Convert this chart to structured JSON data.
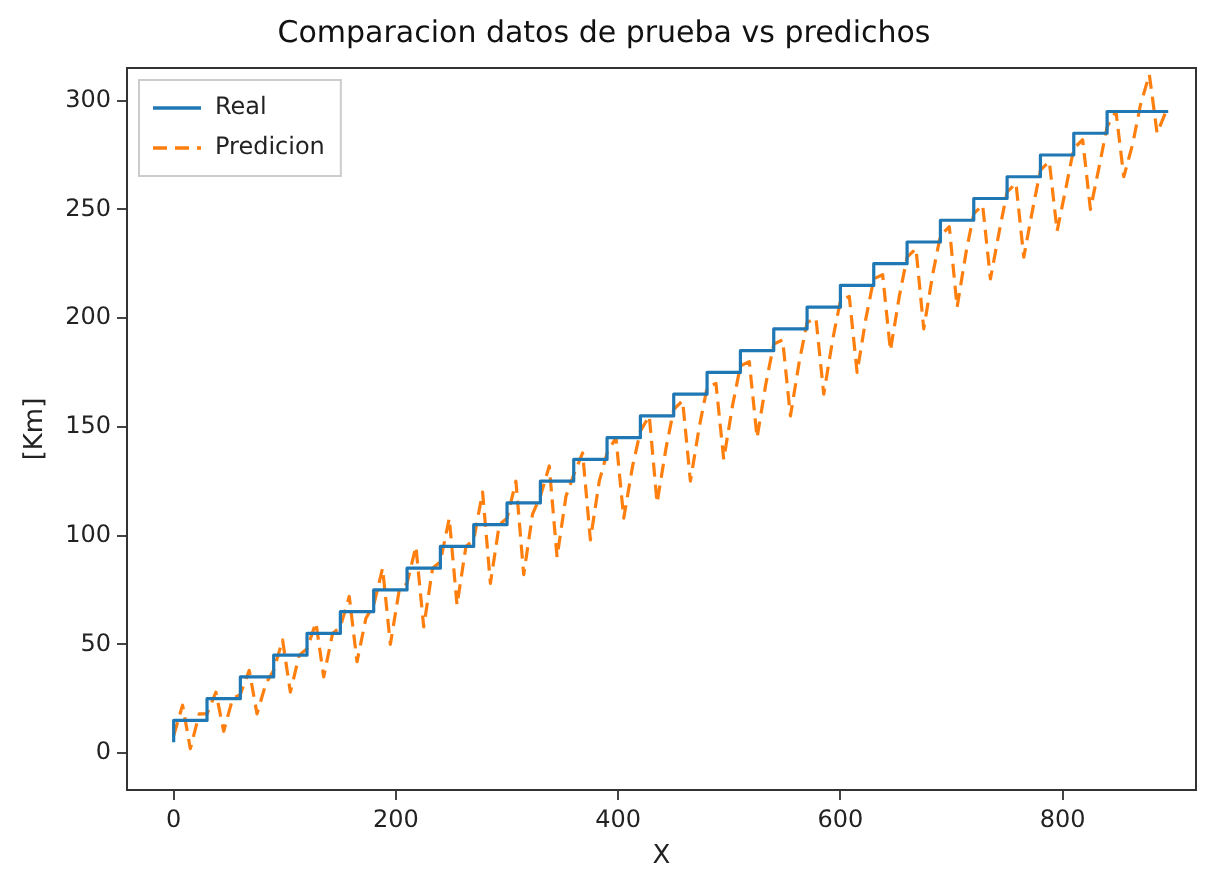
{
  "chart_data": {
    "type": "line",
    "title": "Comparacion datos de prueba vs predichos",
    "xlabel": "X",
    "ylabel": "[Km]",
    "xlim": [
      -42,
      920
    ],
    "ylim": [
      -17,
      315
    ],
    "xticks": [
      0,
      200,
      400,
      600,
      800
    ],
    "yticks": [
      0,
      50,
      100,
      150,
      200,
      250,
      300
    ],
    "grid": false,
    "legend": "top left",
    "series": [
      {
        "name": "Real",
        "type": "step",
        "color": "#1f77b4",
        "line_style": "solid",
        "x": [
          0,
          30,
          60,
          90,
          120,
          150,
          180,
          210,
          240,
          270,
          300,
          330,
          360,
          390,
          420,
          450,
          480,
          510,
          540,
          570,
          600,
          630,
          660,
          690,
          720,
          750,
          780,
          810,
          840,
          870,
          895
        ],
        "values": [
          5,
          15,
          25,
          35,
          45,
          55,
          65,
          75,
          85,
          95,
          105,
          115,
          125,
          135,
          145,
          155,
          165,
          175,
          185,
          195,
          205,
          215,
          225,
          235,
          245,
          255,
          265,
          275,
          285,
          295,
          295
        ]
      },
      {
        "name": "Predicion",
        "type": "line",
        "color": "#ff7f0e",
        "line_style": "dashed",
        "x": [
          0,
          8,
          15,
          23,
          30,
          38,
          45,
          53,
          60,
          68,
          75,
          83,
          90,
          98,
          105,
          113,
          120,
          128,
          135,
          143,
          150,
          158,
          165,
          173,
          180,
          188,
          195,
          203,
          210,
          218,
          225,
          233,
          240,
          248,
          255,
          263,
          270,
          278,
          285,
          293,
          300,
          308,
          315,
          323,
          330,
          338,
          345,
          353,
          360,
          368,
          375,
          383,
          390,
          398,
          405,
          413,
          420,
          428,
          435,
          443,
          450,
          458,
          465,
          473,
          480,
          488,
          495,
          503,
          510,
          518,
          525,
          533,
          540,
          548,
          555,
          563,
          570,
          578,
          585,
          593,
          600,
          608,
          615,
          623,
          630,
          638,
          645,
          653,
          660,
          668,
          675,
          683,
          690,
          698,
          705,
          713,
          720,
          728,
          735,
          743,
          750,
          758,
          765,
          773,
          780,
          788,
          795,
          803,
          810,
          818,
          825,
          833,
          840,
          848,
          855,
          863,
          870,
          878,
          885,
          893
        ],
        "values": [
          8,
          22,
          2,
          18,
          18,
          28,
          10,
          25,
          27,
          38,
          18,
          32,
          38,
          52,
          28,
          45,
          48,
          60,
          35,
          55,
          58,
          72,
          42,
          62,
          68,
          85,
          50,
          75,
          78,
          95,
          58,
          85,
          88,
          108,
          68,
          95,
          98,
          120,
          78,
          105,
          108,
          125,
          82,
          110,
          118,
          132,
          90,
          118,
          128,
          138,
          98,
          125,
          138,
          145,
          108,
          132,
          148,
          155,
          115,
          140,
          158,
          162,
          125,
          150,
          168,
          170,
          135,
          160,
          178,
          180,
          145,
          170,
          188,
          190,
          155,
          180,
          198,
          200,
          165,
          190,
          208,
          210,
          175,
          200,
          218,
          220,
          185,
          210,
          228,
          232,
          195,
          220,
          238,
          242,
          205,
          230,
          248,
          252,
          218,
          240,
          258,
          262,
          228,
          250,
          268,
          272,
          240,
          260,
          278,
          282,
          250,
          270,
          288,
          295,
          265,
          280,
          298,
          312,
          285,
          295
        ]
      }
    ]
  }
}
